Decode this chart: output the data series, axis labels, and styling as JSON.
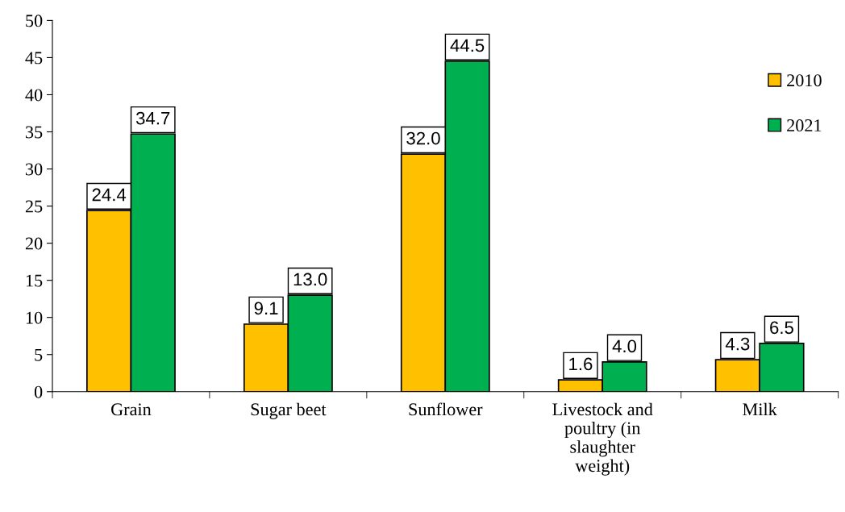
{
  "chart_data": {
    "type": "bar",
    "categories": [
      "Grain",
      "Sugar beet",
      "Sunflower",
      "Livestock and\npoultry (in\nslaughter\nweight)",
      "Milk"
    ],
    "series": [
      {
        "name": "2010",
        "color": "#ffc000",
        "values": [
          24.4,
          9.1,
          32.0,
          1.6,
          4.3
        ],
        "value_labels": [
          "24.4",
          "9.1",
          "32.0",
          "1.6",
          "4.3"
        ]
      },
      {
        "name": "2021",
        "color": "#00b050",
        "values": [
          34.7,
          13.0,
          44.5,
          4.0,
          6.5
        ],
        "value_labels": [
          "34.7",
          "13.0",
          "44.5",
          "4.0",
          "6.5"
        ]
      }
    ],
    "ylim": [
      0,
      50
    ],
    "yticks": [
      0,
      5,
      10,
      15,
      20,
      25,
      30,
      35,
      40,
      45,
      50
    ],
    "grid": false,
    "legend": "top right"
  }
}
